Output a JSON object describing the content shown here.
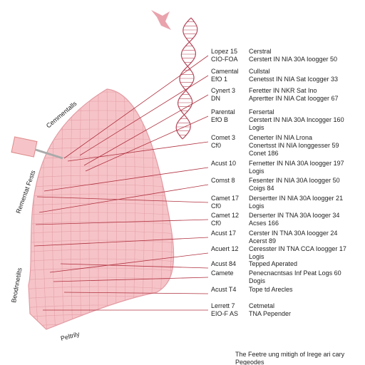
{
  "rows": [
    {
      "left": [
        "Lopez 15",
        "CIO-FOA"
      ],
      "right": [
        "Cerstral",
        "Cerstert IN NIA 30A Ioogger 50"
      ]
    },
    {
      "left": [
        "Camental",
        "EfO 1"
      ],
      "right": [
        "Cullstal",
        "Cenetsst IN NIA Sat Icogger 33"
      ]
    },
    {
      "left": [
        "Cynert 3",
        "DN"
      ],
      "right": [
        "Feretter IN NKR Sat Ino",
        "Aprertter IN NIA Cat Ioogger 67"
      ]
    },
    {
      "left": [
        "Parental",
        "EfO B"
      ],
      "right": [
        "Fersertal",
        "Cerstert IN NIA 30A Incogger 160",
        "Logis"
      ]
    },
    {
      "left": [
        "Comet 3",
        "Cf0"
      ],
      "right": [
        "Cenerter IN NIA Lrona",
        "Conertsst IN NIA Ionggesser 59",
        "Conet 186"
      ]
    },
    {
      "left": [
        "Acust 10"
      ],
      "right": [
        "Fernetter IN NIA 30A Ioogger 197",
        "Logis"
      ]
    },
    {
      "left": [
        "Comst 8"
      ],
      "right": [
        "Fesenter IN NIA 30A Ioogger 50",
        "Coigs 84"
      ]
    },
    {
      "left": [
        "Camet 17",
        "Cf0"
      ],
      "right": [
        "Dersertter IN NIA 30A Ioogger 21",
        "Logis"
      ]
    },
    {
      "left": [
        "Camet 12",
        "Cf0"
      ],
      "right": [
        "Derserter IN TNA 30A Iooger 34",
        "Acses 166"
      ]
    },
    {
      "left": [
        "Acust 17"
      ],
      "right": [
        "Cerster IN TNA 30A Ioogger 24",
        "Acerst 89"
      ]
    },
    {
      "left": [
        "Acuert 12"
      ],
      "right": [
        "Ceresster IN TNA CCA Ioogger 17",
        "Logis"
      ]
    },
    {
      "left": [
        "Acust 84"
      ],
      "right": [
        "Tepped Aperated"
      ]
    },
    {
      "left": [
        "Camete"
      ],
      "right": [
        "Penecnacntsas Inf Peat Logs 60",
        "Dogis"
      ]
    },
    {
      "left": [
        "Acust T4"
      ],
      "right": [
        "Tope td Arecles"
      ]
    },
    {
      "left": [
        "Lerrett 7",
        "EIO-F AS"
      ],
      "right": [
        "Cetmetal",
        "TNA Pepender"
      ]
    }
  ],
  "side_labels": [
    "Cemmentalls",
    "Rementat Fests",
    "Beodnnetilts",
    "Peltrily"
  ],
  "caption": [
    "The Feetre ung mitigh of Irege ari cary",
    "Pegeodes"
  ]
}
